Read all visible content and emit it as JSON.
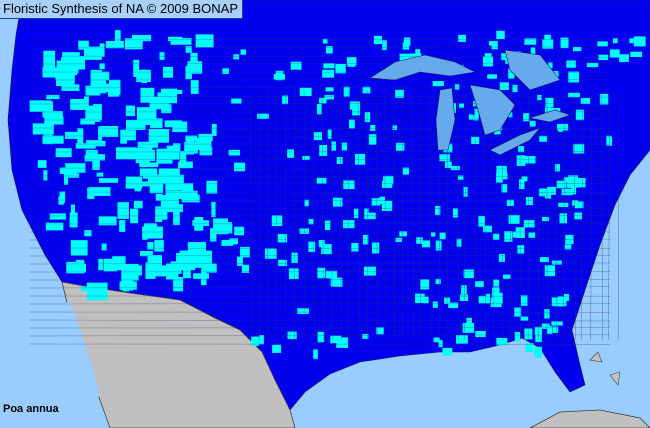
{
  "header": {
    "title": "Floristic Synthesis of NA © 2009 BONAP"
  },
  "map": {
    "species": "Poa annua",
    "colors": {
      "ocean": "#99ccff",
      "present_county": "#00ffff",
      "region_base": "#0000ee",
      "mexico": "#c0c0c0",
      "county_lines": "#303060"
    }
  }
}
